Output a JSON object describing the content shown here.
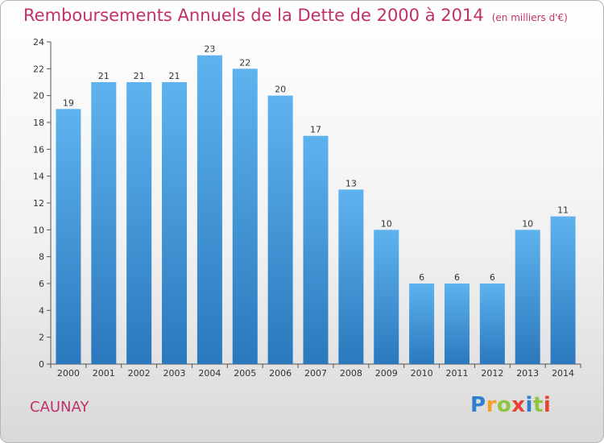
{
  "title": "Remboursements Annuels de la Dette de 2000 à 2014",
  "unit": "(en milliers d'€)",
  "commune": "CAUNAY",
  "logo": {
    "letters": [
      "P",
      "r",
      "o",
      "x",
      "i",
      "t",
      "i"
    ],
    "colors": [
      "#2f7fd1",
      "#f2a126",
      "#8fc53f",
      "#e8432f",
      "#2f7fd1",
      "#8fc53f",
      "#e8432f"
    ]
  },
  "colors": {
    "bar_top": "#5eb3ef",
    "bar_bottom": "#2a78bd",
    "title": "#c0306a"
  },
  "chart_data": {
    "type": "bar",
    "title": "Remboursements Annuels de la Dette de 2000 à 2014",
    "subtitle": "(en milliers d'€)",
    "categories": [
      "2000",
      "2001",
      "2002",
      "2003",
      "2004",
      "2005",
      "2006",
      "2007",
      "2008",
      "2009",
      "2010",
      "2011",
      "2012",
      "2013",
      "2014"
    ],
    "values": [
      19,
      21,
      21,
      21,
      23,
      22,
      20,
      17,
      13,
      10,
      6,
      6,
      6,
      10,
      11
    ],
    "ylim": [
      0,
      24
    ],
    "yticks": [
      0,
      2,
      4,
      6,
      8,
      10,
      12,
      14,
      16,
      18,
      20,
      22,
      24
    ],
    "xlabel": "",
    "ylabel": "",
    "grid": false,
    "legend": "none"
  }
}
